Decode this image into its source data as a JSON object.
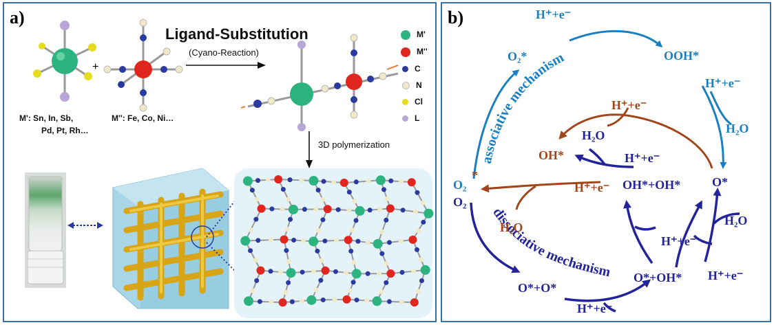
{
  "panel_a": {
    "label": "a)",
    "title": "Ligand-Substitution",
    "subtitle": "(Cyano-Reaction)",
    "plus": "+",
    "mprime_text_line1": "M': Sn, In, Sb,",
    "mprime_text_line2": "Pd, Pt, Rh…",
    "mdouble_text": "M'': Fe, Co, Ni…",
    "polymerization": "3D polymerization",
    "legend": [
      {
        "label": "M'",
        "color": "#2db37f"
      },
      {
        "label": "M''",
        "color": "#e0261e"
      },
      {
        "label": "C",
        "color": "#2a3aa0"
      },
      {
        "label": "N",
        "color": "#efe9c8"
      },
      {
        "label": "Cl",
        "color": "#e6dc1e"
      },
      {
        "label": "L",
        "color": "#b7a6d6"
      }
    ]
  },
  "panel_b": {
    "label": "b)",
    "colors": {
      "assoc": "#1a7fc0",
      "dissoc": "#23239a",
      "shared": "#a0461a"
    },
    "labels": {
      "h_e_top": "H⁺+e⁻",
      "o2_star": "O₂*",
      "ooh": "OOH*",
      "h_e_right_top": "H⁺+e⁻",
      "h2o_right_top": "H₂O",
      "assoc_mech": "associative mechanism",
      "h_e_mid": "H⁺+e⁻",
      "o2_left_top": "O₂",
      "oh_star": "OH*",
      "h2o_center": "H₂O",
      "o_star": "O*",
      "h_e_center": "H⁺+e⁻",
      "star": "*",
      "h_e_brown": "H⁺+e⁻",
      "oh_oh": "OH*+OH*",
      "o2_left_bottom": "O₂",
      "dissoc_mech": "dissociative mechanism",
      "h2o_brown": "H₂O",
      "h2o_right_bottom": "H₂O",
      "h_e_lower_mid": "H⁺+e⁻",
      "h_e_lower_right": "H⁺+e⁻",
      "o_o": "O*+O*",
      "o_oh": "O*+OH*",
      "h_e_bottom": "H⁺+e⁻"
    }
  }
}
